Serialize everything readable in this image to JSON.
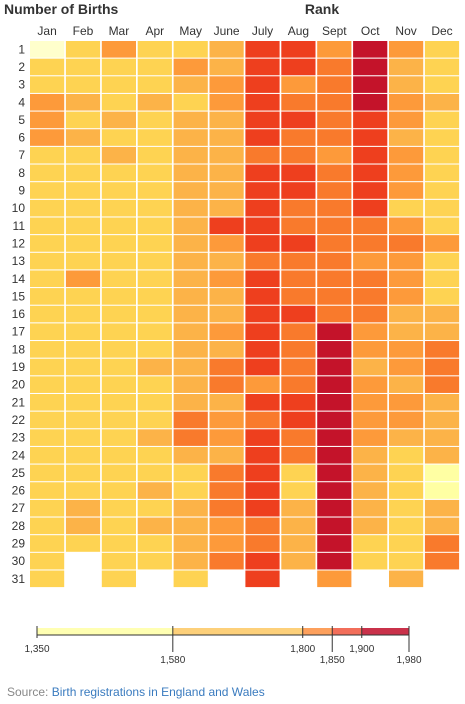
{
  "header": {
    "left_title": "Number of Births",
    "right_title": "Rank"
  },
  "source": {
    "prefix": "Source:",
    "link_text": "Birth registrations in England and Wales"
  },
  "legend": {
    "stops": [
      1350,
      1580,
      1800,
      1850,
      1900,
      1980
    ],
    "labels": [
      "1,350",
      "1,580",
      "1,800",
      "1,850",
      "1,900",
      "1,980"
    ],
    "colors": [
      "#ffffb2",
      "#fed976",
      "#feb24c",
      "#fd8d3c",
      "#f03b20",
      "#bd0026"
    ]
  },
  "chart_data": {
    "type": "heatmap",
    "xlabel": "",
    "ylabel": "Number of Births",
    "title": "Rank",
    "x_categories": [
      "Jan",
      "Feb",
      "Mar",
      "Apr",
      "May",
      "June",
      "July",
      "Aug",
      "Sept",
      "Oct",
      "Nov",
      "Dec"
    ],
    "y_categories": [
      "1",
      "2",
      "3",
      "4",
      "5",
      "6",
      "7",
      "8",
      "9",
      "10",
      "11",
      "12",
      "13",
      "14",
      "15",
      "16",
      "17",
      "18",
      "19",
      "20",
      "21",
      "22",
      "23",
      "24",
      "25",
      "26",
      "27",
      "28",
      "29",
      "30",
      "31"
    ],
    "cell_levels": [
      [
        0,
        2,
        4,
        2,
        2,
        3,
        6,
        6,
        4,
        7,
        4,
        2
      ],
      [
        2,
        2,
        2,
        2,
        4,
        3,
        6,
        6,
        5,
        7,
        3,
        2
      ],
      [
        2,
        2,
        2,
        2,
        3,
        4,
        6,
        4,
        5,
        7,
        3,
        2
      ],
      [
        4,
        3,
        2,
        3,
        2,
        4,
        6,
        5,
        5,
        7,
        4,
        3
      ],
      [
        4,
        2,
        3,
        2,
        3,
        3,
        6,
        6,
        5,
        6,
        4,
        2
      ],
      [
        4,
        3,
        2,
        2,
        3,
        3,
        6,
        5,
        5,
        6,
        3,
        2
      ],
      [
        2,
        2,
        3,
        2,
        3,
        3,
        5,
        5,
        4,
        6,
        4,
        2
      ],
      [
        2,
        2,
        2,
        2,
        3,
        3,
        6,
        6,
        5,
        6,
        4,
        2
      ],
      [
        2,
        2,
        2,
        2,
        3,
        3,
        6,
        6,
        5,
        6,
        4,
        2
      ],
      [
        2,
        2,
        2,
        2,
        3,
        3,
        6,
        5,
        5,
        6,
        2,
        2
      ],
      [
        2,
        2,
        2,
        2,
        3,
        6,
        6,
        5,
        5,
        5,
        4,
        2
      ],
      [
        2,
        2,
        2,
        2,
        3,
        4,
        6,
        6,
        5,
        5,
        5,
        4
      ],
      [
        2,
        2,
        2,
        2,
        3,
        3,
        5,
        5,
        5,
        4,
        4,
        2
      ],
      [
        2,
        4,
        2,
        2,
        3,
        4,
        6,
        5,
        5,
        5,
        4,
        2
      ],
      [
        2,
        2,
        2,
        2,
        3,
        3,
        6,
        5,
        5,
        5,
        4,
        2
      ],
      [
        2,
        2,
        2,
        2,
        3,
        3,
        6,
        6,
        5,
        5,
        3,
        3
      ],
      [
        2,
        2,
        2,
        2,
        3,
        4,
        6,
        5,
        7,
        4,
        3,
        3
      ],
      [
        2,
        2,
        2,
        2,
        3,
        3,
        6,
        5,
        7,
        4,
        4,
        5
      ],
      [
        2,
        2,
        2,
        3,
        3,
        5,
        6,
        5,
        7,
        3,
        4,
        5
      ],
      [
        2,
        2,
        2,
        2,
        3,
        5,
        4,
        5,
        7,
        4,
        3,
        5
      ],
      [
        2,
        2,
        2,
        2,
        3,
        3,
        6,
        6,
        7,
        4,
        4,
        3
      ],
      [
        2,
        2,
        2,
        2,
        5,
        4,
        5,
        6,
        7,
        4,
        4,
        3
      ],
      [
        2,
        2,
        2,
        3,
        5,
        4,
        6,
        5,
        7,
        4,
        3,
        3
      ],
      [
        2,
        2,
        2,
        2,
        3,
        3,
        6,
        5,
        7,
        3,
        2,
        3
      ],
      [
        2,
        2,
        2,
        2,
        2,
        5,
        6,
        2,
        7,
        3,
        2,
        1
      ],
      [
        2,
        2,
        2,
        3,
        2,
        5,
        6,
        2,
        7,
        3,
        2,
        1
      ],
      [
        2,
        3,
        2,
        2,
        3,
        5,
        6,
        3,
        7,
        3,
        2,
        3
      ],
      [
        2,
        3,
        2,
        3,
        3,
        4,
        5,
        3,
        7,
        3,
        2,
        3
      ],
      [
        2,
        2,
        2,
        2,
        3,
        4,
        5,
        3,
        7,
        2,
        2,
        5
      ],
      [
        2,
        null,
        2,
        2,
        3,
        5,
        6,
        3,
        7,
        2,
        2,
        5
      ],
      [
        2,
        null,
        2,
        null,
        2,
        null,
        6,
        null,
        4,
        null,
        3,
        null
      ]
    ],
    "level_colors": [
      "#ffffcc",
      "#ffffa3",
      "#fed352",
      "#fcb348",
      "#fd9a3a",
      "#f97a2c",
      "#ee3f1e",
      "#c4132a"
    ],
    "legend_range": [
      1350,
      1980
    ]
  }
}
